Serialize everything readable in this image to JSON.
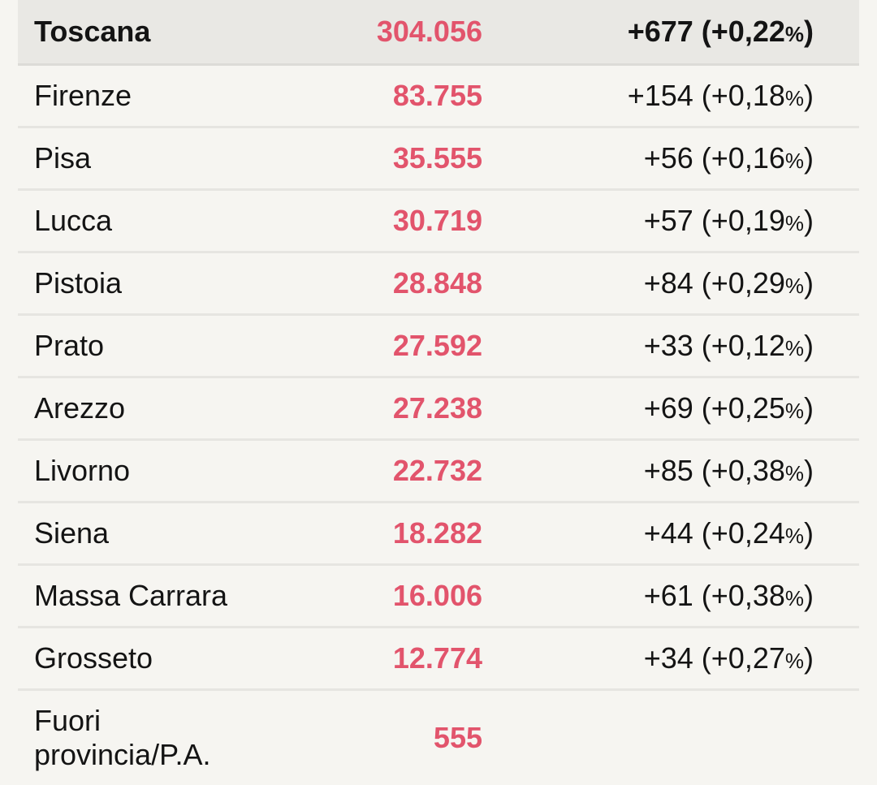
{
  "colors": {
    "value": "#e2546c",
    "header_bg": "#e9e8e4",
    "background": "#f6f5f1"
  },
  "total": {
    "name": "Toscana",
    "value": "304.056",
    "change": "+677 (+0,22",
    "pct": "%",
    ")": ")"
  },
  "rows": [
    {
      "name": "Firenze",
      "value": "83.755",
      "change": "+154 (+0,18"
    },
    {
      "name": "Pisa",
      "value": "35.555",
      "change": "+56 (+0,16"
    },
    {
      "name": "Lucca",
      "value": "30.719",
      "change": "+57 (+0,19"
    },
    {
      "name": "Pistoia",
      "value": "28.848",
      "change": "+84 (+0,29"
    },
    {
      "name": "Prato",
      "value": "27.592",
      "change": "+33 (+0,12"
    },
    {
      "name": "Arezzo",
      "value": "27.238",
      "change": "+69 (+0,25"
    },
    {
      "name": "Livorno",
      "value": "22.732",
      "change": "+85 (+0,38"
    },
    {
      "name": "Siena",
      "value": "18.282",
      "change": "+44 (+0,24"
    },
    {
      "name": "Massa Carrara",
      "value": "16.006",
      "change": "+61 (+0,38"
    },
    {
      "name": "Grosseto",
      "value": "12.774",
      "change": "+34 (+0,27"
    }
  ],
  "other": {
    "name": "Fuori provincia/P.A.",
    "value": "555"
  }
}
